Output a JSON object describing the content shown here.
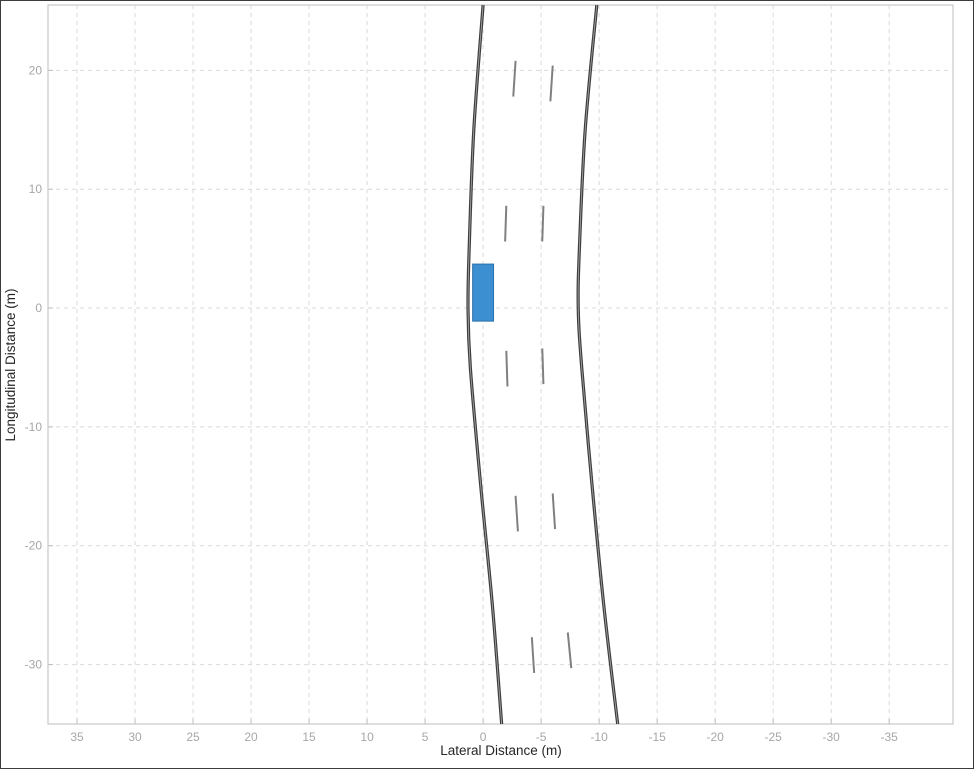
{
  "chart_data": {
    "type": "line",
    "title": "",
    "xlabel": "Lateral Distance (m)",
    "ylabel": "Longitudinal Distance (m)",
    "xlim": [
      37.5,
      -40.5
    ],
    "ylim": [
      -35,
      25.5
    ],
    "x_reversed": true,
    "grid": true,
    "legend": "none",
    "xticks": [
      35,
      30,
      25,
      20,
      15,
      10,
      5,
      0,
      -5,
      -10,
      -15,
      -20,
      -25,
      -30,
      -35
    ],
    "xtick_labels": [
      "35",
      "30",
      "25",
      "20",
      "15",
      "10",
      "5",
      "0",
      "-5",
      "-10",
      "-15",
      "-20",
      "-25",
      "-30",
      "-35"
    ],
    "yticks": [
      20,
      10,
      0,
      -10,
      -20,
      -30
    ],
    "ytick_labels": [
      "20",
      "10",
      "0",
      "-10",
      "-20",
      "-30"
    ],
    "road_boundaries": [
      {
        "x": [
          0,
          0.8,
          1.2,
          1.3,
          1.1,
          0.2,
          -0.8,
          -1.6
        ],
        "y": [
          25.5,
          15,
          5,
          0,
          -5,
          -15,
          -25,
          -35
        ]
      },
      {
        "x": [
          -9.8,
          -8.8,
          -8.3,
          -8.2,
          -8.5,
          -9.4,
          -10.4,
          -11.6
        ],
        "y": [
          25.5,
          15,
          5,
          0,
          -5,
          -15,
          -25,
          -35
        ]
      }
    ],
    "lane_markings": [
      {
        "x": [
          -2.8,
          -2.6
        ],
        "y": [
          20.8,
          17.8
        ]
      },
      {
        "x": [
          -6.0,
          -5.8
        ],
        "y": [
          20.4,
          17.4
        ]
      },
      {
        "x": [
          -2.0,
          -1.9
        ],
        "y": [
          8.6,
          5.6
        ]
      },
      {
        "x": [
          -5.2,
          -5.1
        ],
        "y": [
          8.6,
          5.6
        ]
      },
      {
        "x": [
          -2.0,
          -2.1
        ],
        "y": [
          -3.6,
          -6.6
        ]
      },
      {
        "x": [
          -5.1,
          -5.2
        ],
        "y": [
          -3.4,
          -6.4
        ]
      },
      {
        "x": [
          -2.8,
          -3.0
        ],
        "y": [
          -15.8,
          -18.8
        ]
      },
      {
        "x": [
          -6.0,
          -6.2
        ],
        "y": [
          -15.6,
          -18.6
        ]
      },
      {
        "x": [
          -4.2,
          -4.4
        ],
        "y": [
          -27.7,
          -30.7
        ]
      },
      {
        "x": [
          -7.3,
          -7.6
        ],
        "y": [
          -27.3,
          -30.3
        ]
      }
    ],
    "ego_vehicle": {
      "x": [
        -0.9,
        0.9
      ],
      "y": [
        -1.1,
        3.7
      ],
      "color": "#3c8fd1"
    }
  },
  "colors": {
    "road": "#3f3f3f",
    "marking": "#808080",
    "grid": "#d9d9d9",
    "ego": "#3c8fd1"
  }
}
